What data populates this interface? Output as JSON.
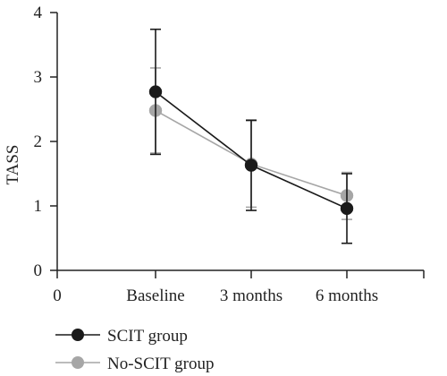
{
  "chart_data": {
    "type": "line",
    "categories": [
      "Baseline",
      "3 months",
      "6 months"
    ],
    "x_zero_label": "0",
    "ylabel": "TASS",
    "ylim": [
      0,
      4
    ],
    "yticks": [
      0,
      1,
      2,
      3,
      4
    ],
    "grid": false,
    "legend_position": "bottom-left",
    "series": [
      {
        "name": "SCIT group",
        "color": "#1a1a1a",
        "values": [
          2.77,
          1.63,
          0.96
        ],
        "error_low": [
          1.8,
          0.93,
          0.42
        ],
        "error_high": [
          3.74,
          2.33,
          1.5
        ]
      },
      {
        "name": "No-SCIT group",
        "color": "#a6a6a6",
        "values": [
          2.48,
          1.65,
          1.16
        ],
        "error_low": [
          1.82,
          0.98,
          0.79
        ],
        "error_high": [
          3.14,
          2.32,
          1.52
        ]
      }
    ]
  }
}
